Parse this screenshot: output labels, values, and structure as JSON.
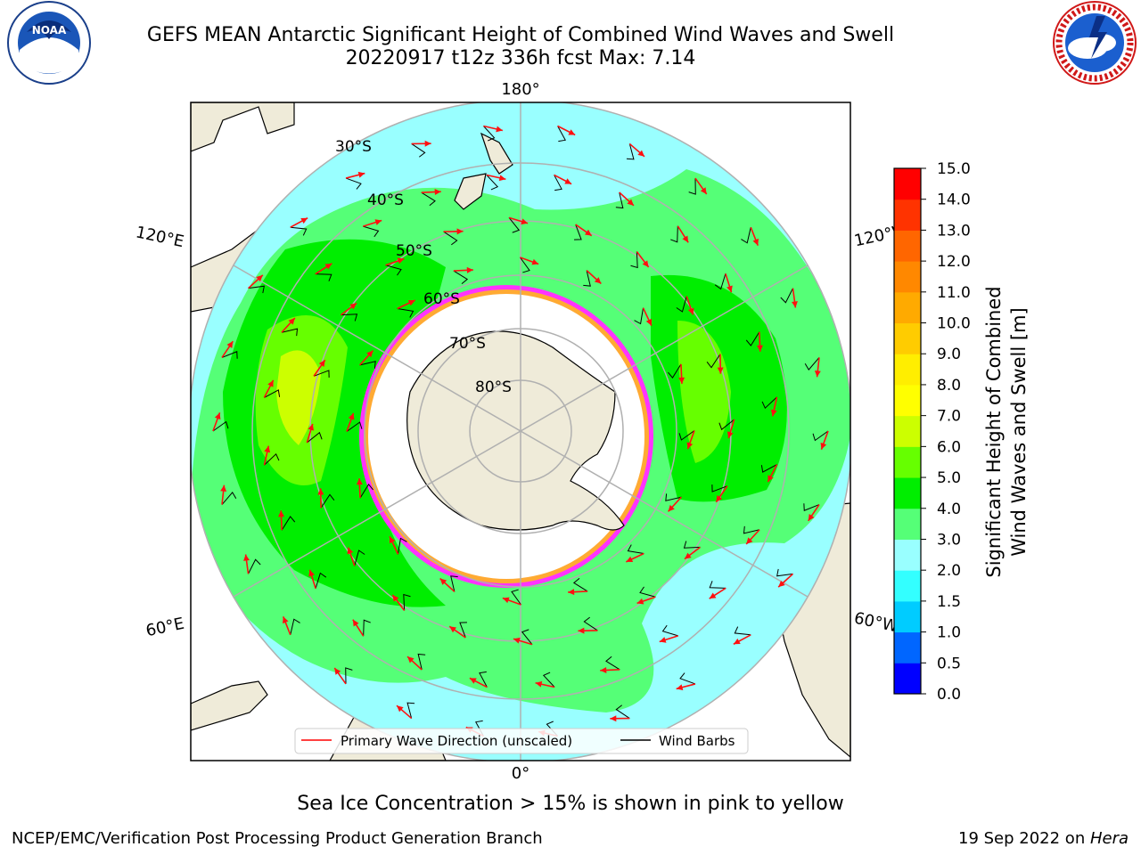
{
  "title": {
    "line1": "GEFS MEAN Antarctic Significant Height of Combined Wind Waves and Swell",
    "line2": "20220917 t12z 336h fcst   Max: 7.14"
  },
  "logos": {
    "left": {
      "name": "noaa-logo",
      "text": "NOAA",
      "ring": "NATIONAL OCEANIC AND ATMOSPHERIC ADMINISTRATION · U.S. DEPARTMENT OF COMMERCE"
    },
    "right": {
      "name": "nws-logo",
      "ring": "NATIONAL WEATHER SERVICE"
    }
  },
  "map": {
    "projection": "south-polar-stereographic",
    "longitude_labels": {
      "top": "180°",
      "bottom": "0°",
      "upper_left": "120°E",
      "upper_right": "120°W",
      "lower_left": "60°E",
      "lower_right": "60°W"
    },
    "latitude_labels": [
      "30°S",
      "40°S",
      "50°S",
      "60°S",
      "70°S",
      "80°S"
    ],
    "sea_ice_colors": [
      "#ff33ff",
      "#ffaa33",
      "#ffff66"
    ],
    "land_color": "#efebd9",
    "arrow_color": "#ff1010",
    "barb_color": "#000000"
  },
  "legend": {
    "primary_wave_label": "Primary Wave Direction (unscaled)",
    "wind_barbs_label": "Wind Barbs"
  },
  "colorbar": {
    "label_line1": "Significant Height of Combined",
    "label_line2": "Wind Waves and Swell [m]",
    "ticks": [
      "0.0",
      "0.5",
      "1.0",
      "1.5",
      "2.0",
      "3.0",
      "4.0",
      "5.0",
      "6.0",
      "7.0",
      "8.0",
      "9.0",
      "10.0",
      "11.0",
      "12.0",
      "13.0",
      "14.0",
      "15.0"
    ],
    "colors": [
      "#0000ff",
      "#0066ff",
      "#00ccff",
      "#33ffff",
      "#99ffff",
      "#55ff77",
      "#00ee00",
      "#66ff00",
      "#ccff00",
      "#ffff00",
      "#ffee00",
      "#ffcc00",
      "#ffaa00",
      "#ff8800",
      "#ff6600",
      "#ff3300",
      "#ff0000"
    ]
  },
  "subcaption": "Sea Ice Concentration > 15% is shown in pink to yellow",
  "footer": {
    "left": "NCEP/EMC/Verification Post Processing Product Generation Branch",
    "right_prefix": "19 Sep 2022 on ",
    "right_host": "Hera"
  }
}
